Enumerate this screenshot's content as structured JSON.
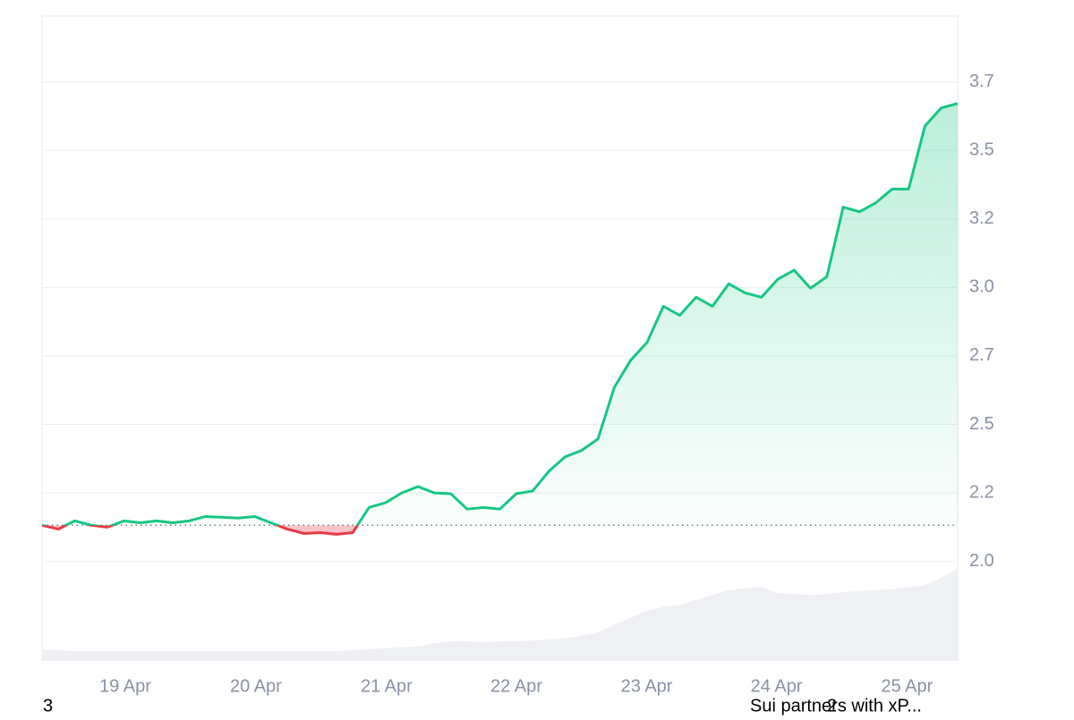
{
  "chart_data": {
    "type": "price-line",
    "baseline": 2.132,
    "xlim": [
      0,
      56
    ],
    "xticks": [
      {
        "value": 5.09,
        "label": "19 Apr"
      },
      {
        "value": 13.08,
        "label": "20 Apr"
      },
      {
        "value": 21.07,
        "label": "21 Apr"
      },
      {
        "value": 29.01,
        "label": "22 Apr"
      },
      {
        "value": 36.98,
        "label": "23 Apr"
      },
      {
        "value": 44.92,
        "label": "24 Apr"
      },
      {
        "value": 52.9,
        "label": "25 Apr"
      }
    ],
    "ylim": [
      1.64,
      3.99
    ],
    "yticks": [
      {
        "value": 2.0,
        "label": "2.0"
      },
      {
        "value": 2.25,
        "label": "2.2"
      },
      {
        "value": 2.5,
        "label": "2.5"
      },
      {
        "value": 2.75,
        "label": "2.7"
      },
      {
        "value": 3.0,
        "label": "3.0"
      },
      {
        "value": 3.25,
        "label": "3.2"
      },
      {
        "value": 3.5,
        "label": "3.5"
      },
      {
        "value": 3.75,
        "label": "3.7"
      }
    ],
    "grid": true,
    "up_color": "#16c784",
    "down_color": "#ea3943",
    "volume_color": "#eef0f3",
    "series": [
      {
        "name": "Price",
        "values": [
          2.132,
          2.118,
          2.148,
          2.132,
          2.125,
          2.148,
          2.141,
          2.148,
          2.141,
          2.148,
          2.164,
          2.161,
          2.158,
          2.164,
          2.141,
          2.118,
          2.102,
          2.105,
          2.099,
          2.105,
          2.197,
          2.214,
          2.25,
          2.273,
          2.25,
          2.247,
          2.191,
          2.197,
          2.191,
          2.247,
          2.257,
          2.329,
          2.382,
          2.405,
          2.447,
          2.635,
          2.734,
          2.799,
          2.931,
          2.898,
          2.964,
          2.931,
          3.013,
          2.98,
          2.964,
          3.03,
          3.063,
          2.997,
          3.039,
          3.293,
          3.276,
          3.309,
          3.359,
          3.359,
          3.589,
          3.655,
          3.671
        ]
      },
      {
        "name": "Volume",
        "axis": "y2",
        "values": [
          11,
          10,
          9,
          9,
          9,
          9,
          9,
          9,
          9,
          9,
          9,
          9,
          9,
          9,
          9,
          9,
          9,
          9,
          9,
          10,
          11,
          12,
          13,
          14,
          17,
          19,
          19,
          18,
          19,
          19,
          20,
          21,
          22,
          25,
          28,
          36,
          43,
          50,
          54,
          56,
          61,
          66,
          71,
          73,
          74,
          68,
          67,
          66,
          67,
          69,
          70,
          71,
          72,
          74,
          76,
          84,
          93
        ]
      }
    ],
    "y2lim": [
      0,
      100
    ],
    "footer_left": "3",
    "news": "Sui partners with xP...",
    "news_count": "2"
  }
}
